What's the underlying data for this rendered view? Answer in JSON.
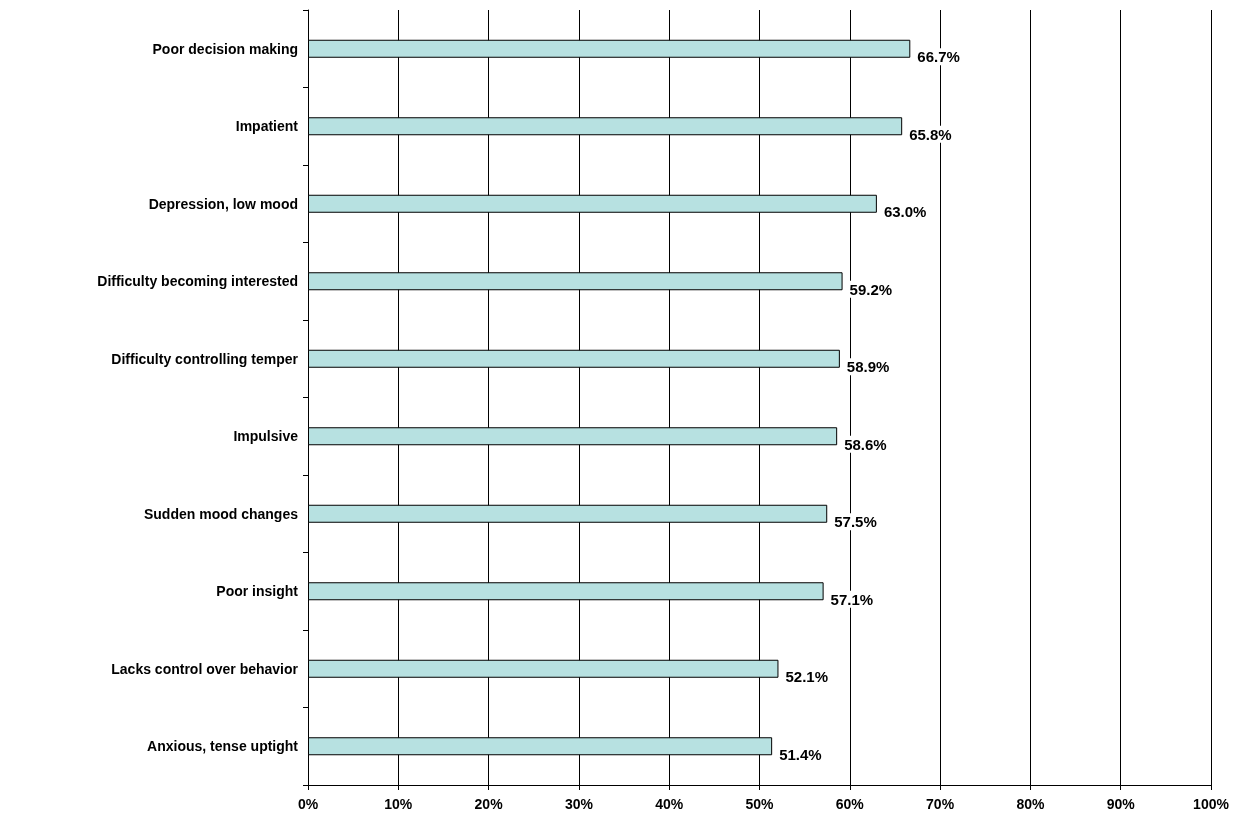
{
  "chart_data": {
    "type": "bar",
    "orientation": "horizontal",
    "categories": [
      "Poor decision making",
      "Impatient",
      "Depression, low mood",
      "Difficulty becoming interested",
      "Difficulty controlling temper",
      "Impulsive",
      "Sudden mood changes",
      "Poor insight",
      "Lacks control over behavior",
      "Anxious, tense uptight"
    ],
    "values": [
      66.7,
      65.8,
      63.0,
      59.2,
      58.9,
      58.6,
      57.5,
      57.1,
      52.1,
      51.4
    ],
    "value_labels": [
      "66.7%",
      "65.8%",
      "63.0%",
      "59.2%",
      "58.9%",
      "58.6%",
      "57.5%",
      "57.1%",
      "52.1%",
      "51.4%"
    ],
    "color": "#b7e1e1",
    "xlim": [
      0,
      100
    ],
    "xticks": [
      {
        "value": 0,
        "label": "0%"
      },
      {
        "value": 10,
        "label": "10%"
      },
      {
        "value": 20,
        "label": "20%"
      },
      {
        "value": 30,
        "label": "30%"
      },
      {
        "value": 40,
        "label": "40%"
      },
      {
        "value": 50,
        "label": "50%"
      },
      {
        "value": 60,
        "label": "60%"
      },
      {
        "value": 70,
        "label": "70%"
      },
      {
        "value": 80,
        "label": "80%"
      },
      {
        "value": 90,
        "label": "90%"
      },
      {
        "value": 100,
        "label": "100%"
      }
    ],
    "grid": "x"
  }
}
